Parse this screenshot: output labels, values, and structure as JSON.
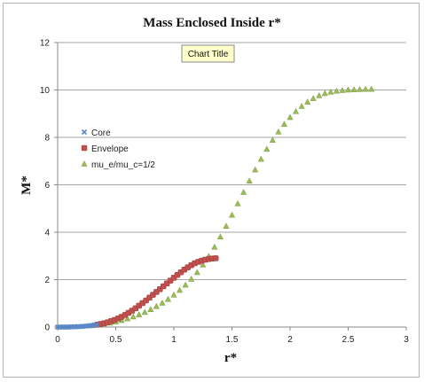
{
  "chart_data": {
    "type": "scatter",
    "title": "Mass Enclosed Inside r*",
    "xlabel": "r*",
    "ylabel": "M*",
    "xlim": [
      0,
      3
    ],
    "ylim": [
      0,
      12
    ],
    "xticks": [
      "0",
      "0.5",
      "1",
      "1.5",
      "2",
      "2.5",
      "3"
    ],
    "yticks": [
      "0",
      "2",
      "4",
      "6",
      "8",
      "10",
      "12"
    ],
    "grid": "horizontal",
    "legend_position": "left",
    "tooltip": "Chart Title",
    "series": [
      {
        "name": "Core",
        "marker": "x",
        "color": "#5b87c6",
        "x": [
          0,
          0.02,
          0.04,
          0.06,
          0.08,
          0.1,
          0.12,
          0.14,
          0.16,
          0.18,
          0.2,
          0.22,
          0.24,
          0.26,
          0.28,
          0.3,
          0.32,
          0.34
        ],
        "y": [
          0,
          0,
          0,
          0,
          0,
          0,
          0.01,
          0.01,
          0.01,
          0.02,
          0.02,
          0.03,
          0.04,
          0.05,
          0.06,
          0.07,
          0.09,
          0.1
        ]
      },
      {
        "name": "Envelope",
        "marker": "square",
        "color": "#c0504d",
        "x": [
          0.34,
          0.37,
          0.4,
          0.43,
          0.46,
          0.49,
          0.52,
          0.55,
          0.58,
          0.61,
          0.64,
          0.67,
          0.7,
          0.73,
          0.76,
          0.79,
          0.82,
          0.85,
          0.88,
          0.91,
          0.94,
          0.97,
          1.0,
          1.03,
          1.06,
          1.09,
          1.12,
          1.15,
          1.18,
          1.21,
          1.24,
          1.27,
          1.3,
          1.33,
          1.36
        ],
        "y": [
          0.1,
          0.13,
          0.16,
          0.2,
          0.25,
          0.3,
          0.36,
          0.43,
          0.51,
          0.6,
          0.69,
          0.79,
          0.9,
          1.01,
          1.12,
          1.24,
          1.36,
          1.48,
          1.6,
          1.72,
          1.84,
          1.96,
          2.08,
          2.2,
          2.31,
          2.42,
          2.52,
          2.61,
          2.69,
          2.75,
          2.8,
          2.84,
          2.87,
          2.89,
          2.9
        ]
      },
      {
        "name": "mu_e/mu_c=1/2",
        "marker": "triangle",
        "color": "#9bbb59",
        "x": [
          0.3,
          0.35,
          0.4,
          0.45,
          0.5,
          0.55,
          0.6,
          0.65,
          0.7,
          0.75,
          0.8,
          0.85,
          0.9,
          0.95,
          1.0,
          1.05,
          1.1,
          1.15,
          1.2,
          1.25,
          1.3,
          1.35,
          1.4,
          1.45,
          1.5,
          1.55,
          1.6,
          1.65,
          1.7,
          1.75,
          1.8,
          1.85,
          1.9,
          1.95,
          2.0,
          2.05,
          2.1,
          2.15,
          2.2,
          2.25,
          2.3,
          2.35,
          2.4,
          2.45,
          2.5,
          2.55,
          2.6,
          2.65,
          2.7
        ],
        "y": [
          0.06,
          0.09,
          0.13,
          0.17,
          0.22,
          0.28,
          0.35,
          0.43,
          0.52,
          0.62,
          0.74,
          0.87,
          1.01,
          1.17,
          1.35,
          1.55,
          1.77,
          2.02,
          2.3,
          2.62,
          2.98,
          3.37,
          3.8,
          4.25,
          4.72,
          5.2,
          5.68,
          6.16,
          6.63,
          7.08,
          7.5,
          7.88,
          8.23,
          8.55,
          8.84,
          9.09,
          9.31,
          9.49,
          9.64,
          9.76,
          9.85,
          9.91,
          9.95,
          9.98,
          10.0,
          10.01,
          10.02,
          10.03,
          10.03
        ]
      }
    ]
  }
}
